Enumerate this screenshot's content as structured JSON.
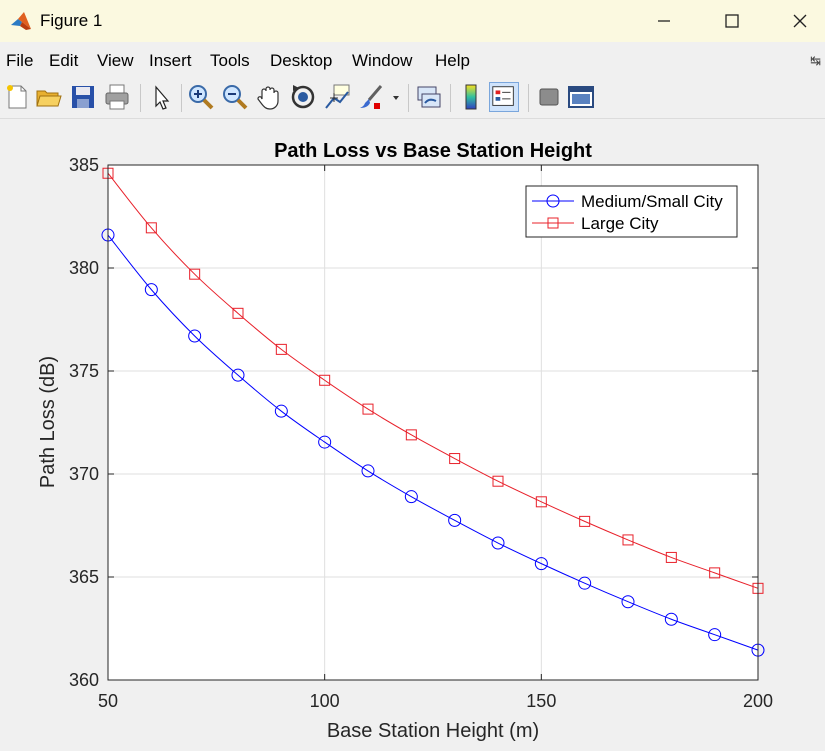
{
  "window": {
    "title": "Figure 1",
    "minimize_icon": "minimize-icon",
    "maximize_icon": "maximize-icon",
    "close_icon": "close-icon"
  },
  "menu": {
    "items": [
      "File",
      "Edit",
      "View",
      "Insert",
      "Tools",
      "Desktop",
      "Window",
      "Help"
    ]
  },
  "toolbar": {
    "icons": [
      "new-figure-icon",
      "open-file-icon",
      "save-icon",
      "print-icon",
      "select-arrow-icon",
      "zoom-in-icon",
      "zoom-out-icon",
      "pan-hand-icon",
      "rotate-3d-icon",
      "data-cursor-icon",
      "brush-icon",
      "link-plot-icon",
      "colorbar-icon",
      "legend-icon",
      "hide-tools-icon",
      "dock-icon"
    ]
  },
  "chart_data": {
    "type": "line",
    "title": "Path Loss vs Base Station Height",
    "xlabel": "Base Station Height (m)",
    "ylabel": "Path Loss (dB)",
    "xlim": [
      50,
      200
    ],
    "ylim": [
      360,
      385
    ],
    "xticks": [
      50,
      100,
      150,
      200
    ],
    "yticks": [
      360,
      365,
      370,
      375,
      380,
      385
    ],
    "grid": true,
    "legend_position": "top-right",
    "x": [
      50,
      60,
      70,
      80,
      90,
      100,
      110,
      120,
      130,
      140,
      150,
      160,
      170,
      180,
      190,
      200
    ],
    "series": [
      {
        "name": "Medium/Small City",
        "color": "#0000ff",
        "marker": "circle",
        "values": [
          381.6,
          378.95,
          376.7,
          374.8,
          373.05,
          371.55,
          370.15,
          368.9,
          367.75,
          366.65,
          365.65,
          364.7,
          363.8,
          362.95,
          362.2,
          361.45
        ]
      },
      {
        "name": "Large City",
        "color": "#e8202a",
        "marker": "square",
        "values": [
          384.6,
          381.95,
          379.7,
          377.8,
          376.05,
          374.55,
          373.15,
          371.9,
          370.75,
          369.65,
          368.65,
          367.7,
          366.8,
          365.95,
          365.2,
          364.45
        ]
      }
    ]
  }
}
